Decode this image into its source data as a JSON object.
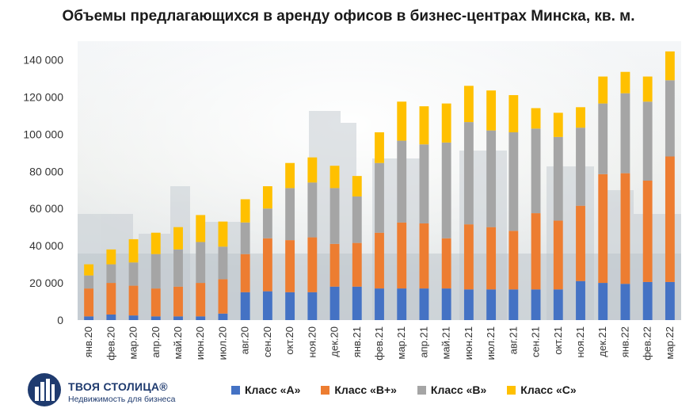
{
  "chart_data": {
    "type": "bar",
    "stacked": true,
    "title": "Объемы предлагающихся в аренду офисов в бизнес-центрах Минска, кв. м.",
    "xlabel": "",
    "ylabel": "",
    "ylim": [
      0,
      150000
    ],
    "yticks": [
      0,
      20000,
      40000,
      60000,
      80000,
      100000,
      120000,
      140000
    ],
    "ytick_labels": [
      "0",
      "20 000",
      "40 000",
      "60 000",
      "80 000",
      "100 000",
      "120 000",
      "140 000"
    ],
    "grid": false,
    "legend_position": "bottom",
    "categories": [
      "янв.20",
      "фев.20",
      "мар.20",
      "апр.20",
      "май.20",
      "июн.20",
      "июл.20",
      "авг.20",
      "сен.20",
      "окт.20",
      "ноя.20",
      "дек.20",
      "янв.21",
      "фев.21",
      "мар.21",
      "апр.21",
      "май.21",
      "июн.21",
      "июл.21",
      "авг.21",
      "сен.21",
      "окт.21",
      "ноя.21",
      "дек.21",
      "янв.22",
      "фев.22",
      "мар.22"
    ],
    "series": [
      {
        "name": "Класс «А»",
        "color": "#4472c4",
        "values": [
          2000,
          3000,
          2500,
          2000,
          2000,
          2000,
          3500,
          15000,
          15500,
          15000,
          15000,
          18000,
          18000,
          17000,
          17000,
          17000,
          17000,
          16500,
          16500,
          16500,
          16500,
          16500,
          21000,
          20000,
          19500,
          20500,
          20500
        ]
      },
      {
        "name": "Класс «В+»",
        "color": "#ed7d31",
        "values": [
          15000,
          17000,
          16000,
          15000,
          16000,
          18000,
          18500,
          20500,
          28500,
          28000,
          29500,
          23000,
          23500,
          30000,
          35500,
          35000,
          27000,
          35000,
          33500,
          31500,
          41000,
          37000,
          40500,
          58500,
          59500,
          54500,
          67500
        ]
      },
      {
        "name": "Класс «В»",
        "color": "#a5a5a5",
        "values": [
          7000,
          10000,
          12500,
          18500,
          20000,
          22000,
          17500,
          17000,
          16000,
          28000,
          29500,
          30000,
          25000,
          37500,
          44000,
          42500,
          51500,
          55000,
          52000,
          53000,
          45500,
          45000,
          42000,
          38000,
          43000,
          42500,
          41000
        ]
      },
      {
        "name": "Класс «С»",
        "color": "#ffc000",
        "values": [
          6000,
          8000,
          12500,
          11500,
          12000,
          14500,
          13500,
          12500,
          12000,
          13500,
          13500,
          12000,
          11000,
          16500,
          21000,
          20500,
          21000,
          19500,
          21500,
          20000,
          11000,
          13000,
          11000,
          14500,
          11500,
          13500,
          15500
        ]
      }
    ]
  },
  "logo": {
    "name": "ТВОЯ СТОЛИЦА®",
    "tagline": "Недвижимость для бизнеса"
  }
}
